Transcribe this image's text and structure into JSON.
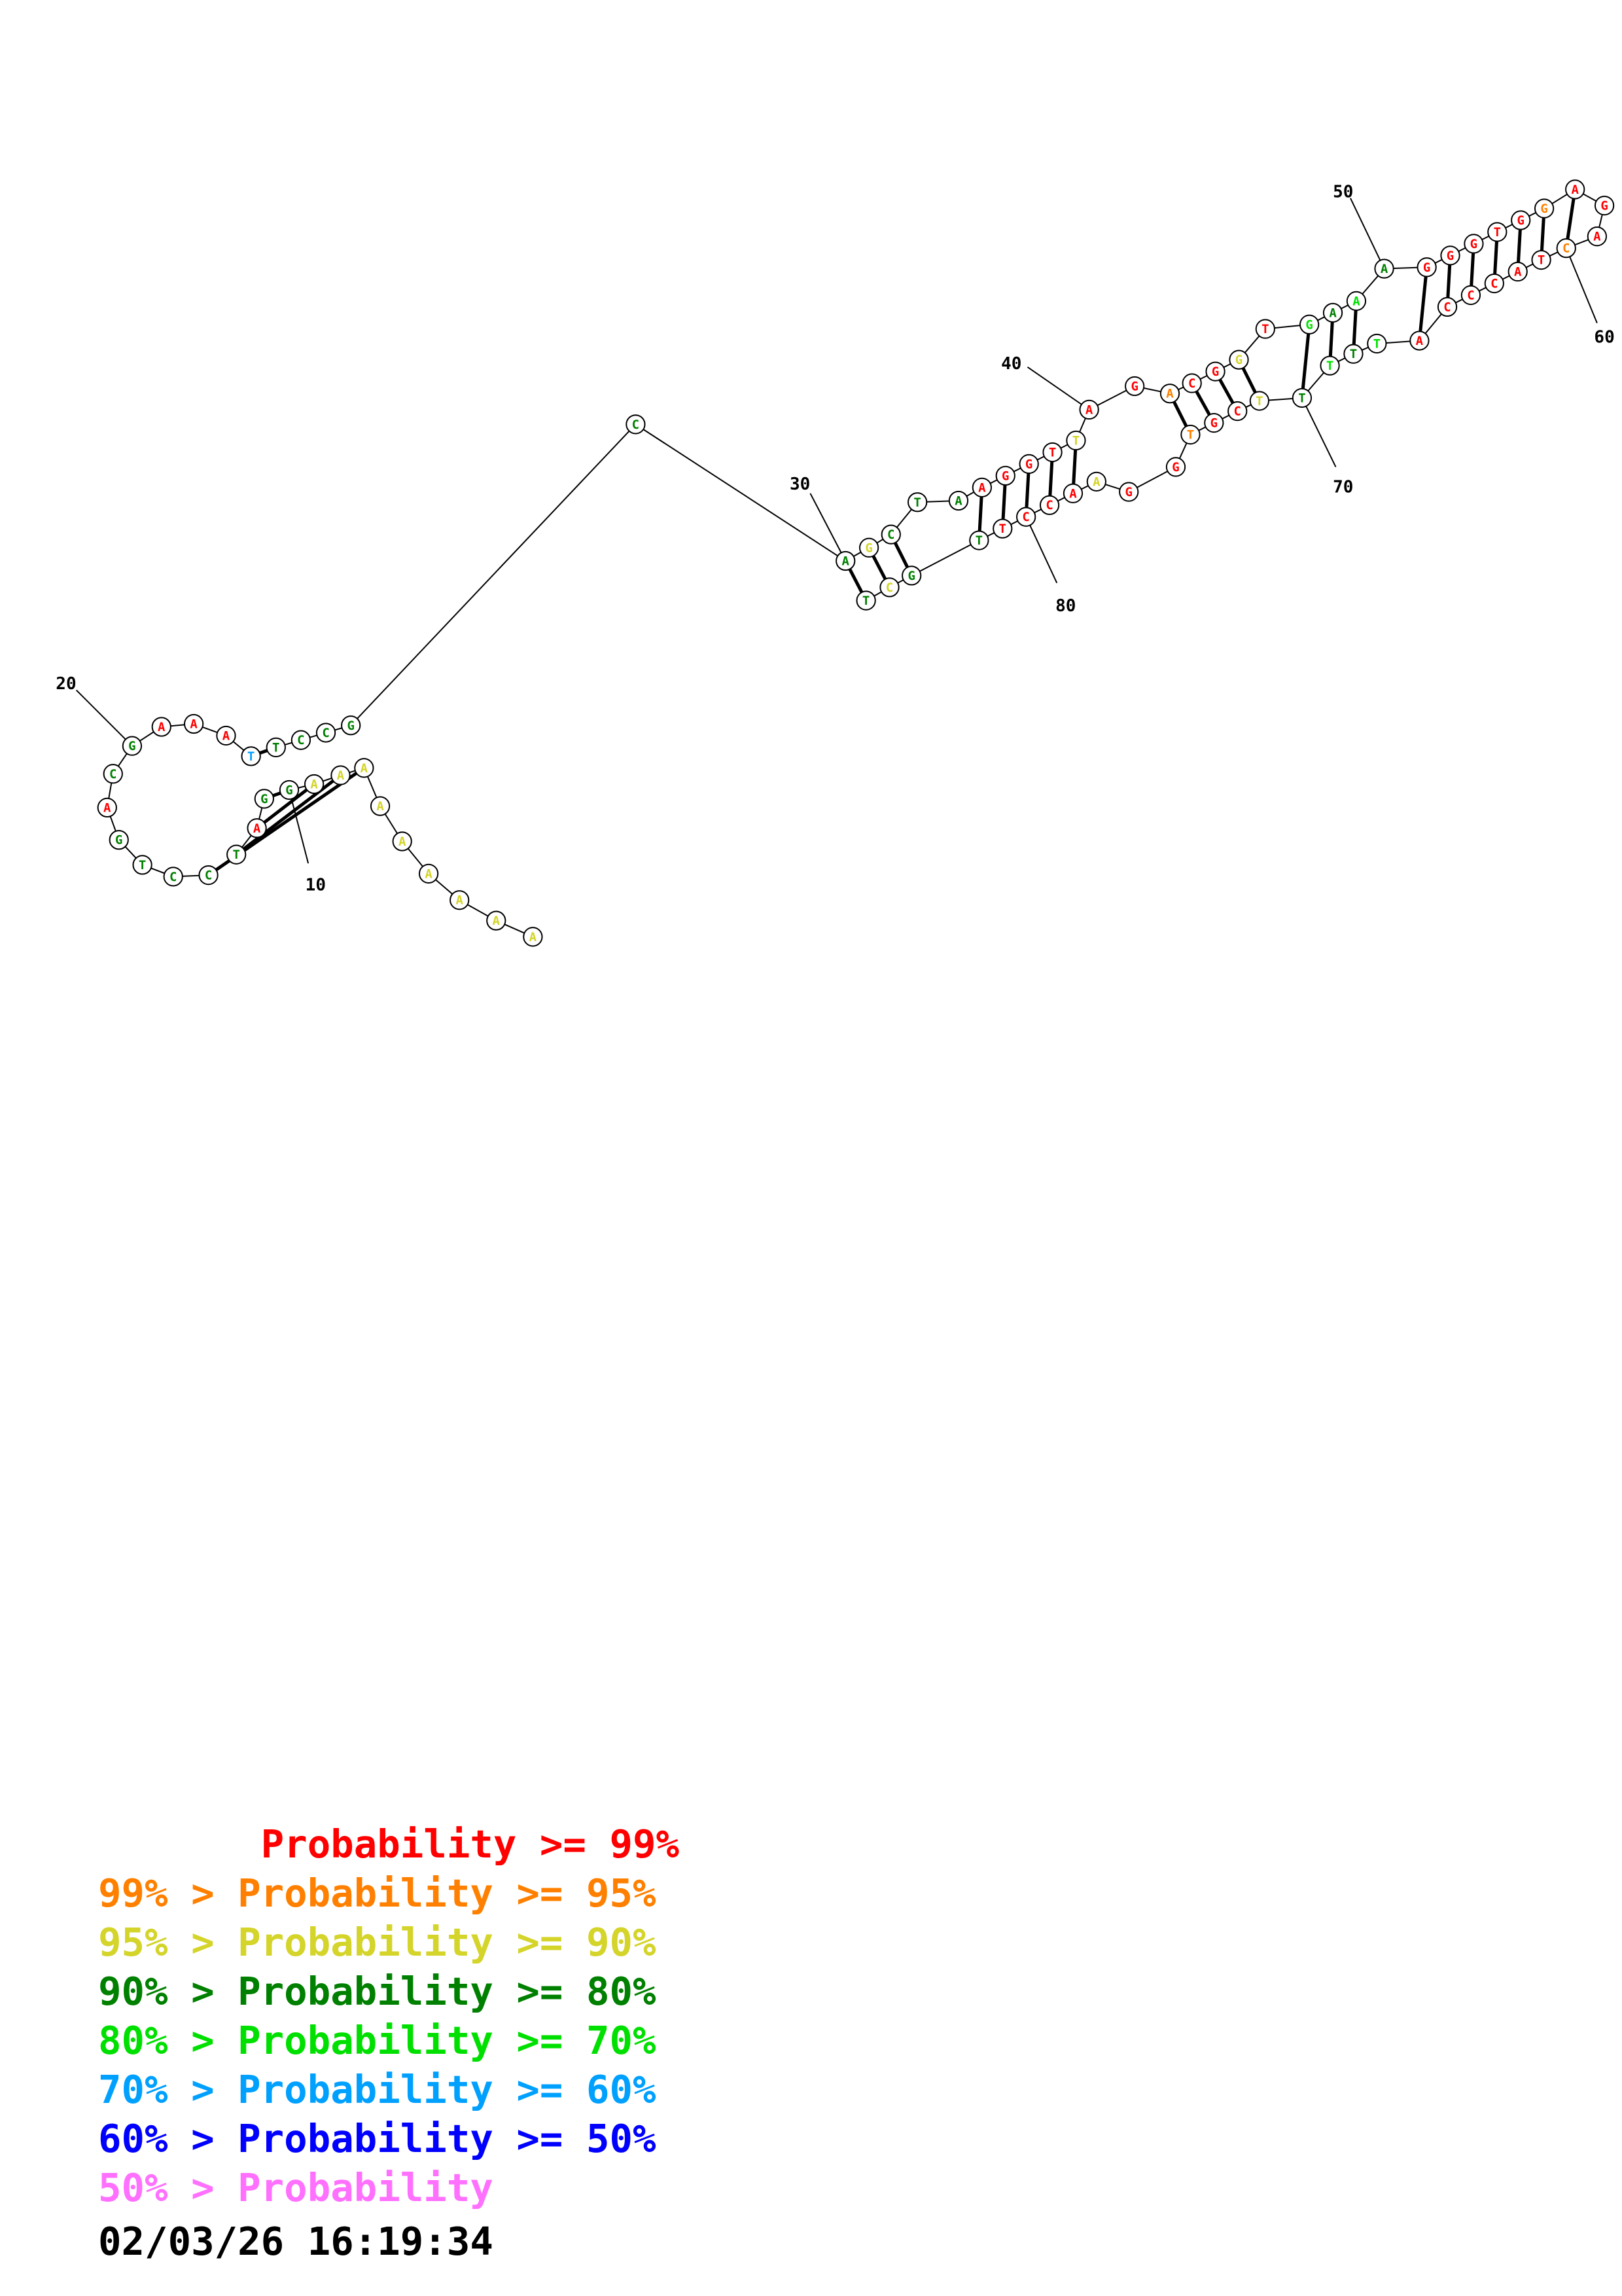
{
  "colors": {
    "p99": "#ff0000",
    "p95": "#ff8000",
    "p90": "#d4d42a",
    "p80": "#008000",
    "p70": "#00e000",
    "p60": "#00a0ff",
    "p50": "#0000ff",
    "plow": "#ff70ff"
  },
  "nucleotides": [
    {
      "base": "A",
      "c": "p90"
    },
    {
      "base": "A",
      "c": "p90"
    },
    {
      "base": "A",
      "c": "p90"
    },
    {
      "base": "A",
      "c": "p90"
    },
    {
      "base": "A",
      "c": "p90"
    },
    {
      "base": "A",
      "c": "p90"
    },
    {
      "base": "A",
      "c": "p90"
    },
    {
      "base": "A",
      "c": "p90"
    },
    {
      "base": "A",
      "c": "p90"
    },
    {
      "base": "G",
      "c": "p80"
    },
    {
      "base": "G",
      "c": "p80"
    },
    {
      "base": "A",
      "c": "p99"
    },
    {
      "base": "T",
      "c": "p80"
    },
    {
      "base": "C",
      "c": "p80"
    },
    {
      "base": "C",
      "c": "p80"
    },
    {
      "base": "T",
      "c": "p80"
    },
    {
      "base": "G",
      "c": "p80"
    },
    {
      "base": "A",
      "c": "p99"
    },
    {
      "base": "C",
      "c": "p80"
    },
    {
      "base": "G",
      "c": "p80"
    },
    {
      "base": "A",
      "c": "p99"
    },
    {
      "base": "A",
      "c": "p99"
    },
    {
      "base": "A",
      "c": "p99"
    },
    {
      "base": "T",
      "c": "p60"
    },
    {
      "base": "T",
      "c": "p80"
    },
    {
      "base": "C",
      "c": "p80"
    },
    {
      "base": "C",
      "c": "p80"
    },
    {
      "base": "G",
      "c": "p80"
    },
    {
      "base": "C",
      "c": "p80"
    },
    {
      "base": "A",
      "c": "p80"
    },
    {
      "base": "G",
      "c": "p90"
    },
    {
      "base": "C",
      "c": "p80"
    },
    {
      "base": "T",
      "c": "p80"
    },
    {
      "base": "A",
      "c": "p80"
    },
    {
      "base": "A",
      "c": "p99"
    },
    {
      "base": "G",
      "c": "p99"
    },
    {
      "base": "G",
      "c": "p99"
    },
    {
      "base": "T",
      "c": "p99"
    },
    {
      "base": "T",
      "c": "p90"
    },
    {
      "base": "A",
      "c": "p99"
    },
    {
      "base": "G",
      "c": "p99"
    },
    {
      "base": "A",
      "c": "p95"
    },
    {
      "base": "C",
      "c": "p99"
    },
    {
      "base": "G",
      "c": "p99"
    },
    {
      "base": "G",
      "c": "p90"
    },
    {
      "base": "T",
      "c": "p99"
    },
    {
      "base": "G",
      "c": "p70"
    },
    {
      "base": "A",
      "c": "p80"
    },
    {
      "base": "A",
      "c": "p70"
    },
    {
      "base": "A",
      "c": "p80"
    },
    {
      "base": "G",
      "c": "p99"
    },
    {
      "base": "G",
      "c": "p99"
    },
    {
      "base": "G",
      "c": "p99"
    },
    {
      "base": "T",
      "c": "p99"
    },
    {
      "base": "G",
      "c": "p99"
    },
    {
      "base": "G",
      "c": "p95"
    },
    {
      "base": "A",
      "c": "p99"
    },
    {
      "base": "G",
      "c": "p99"
    },
    {
      "base": "A",
      "c": "p99"
    },
    {
      "base": "C",
      "c": "p95"
    },
    {
      "base": "T",
      "c": "p99"
    },
    {
      "base": "A",
      "c": "p99"
    },
    {
      "base": "C",
      "c": "p99"
    },
    {
      "base": "C",
      "c": "p99"
    },
    {
      "base": "C",
      "c": "p99"
    },
    {
      "base": "A",
      "c": "p99"
    },
    {
      "base": "T",
      "c": "p70"
    },
    {
      "base": "T",
      "c": "p80"
    },
    {
      "base": "T",
      "c": "p70"
    },
    {
      "base": "T",
      "c": "p80"
    },
    {
      "base": "T",
      "c": "p90"
    },
    {
      "base": "C",
      "c": "p99"
    },
    {
      "base": "G",
      "c": "p99"
    },
    {
      "base": "T",
      "c": "p95"
    },
    {
      "base": "G",
      "c": "p99"
    },
    {
      "base": "G",
      "c": "p99"
    },
    {
      "base": "A",
      "c": "p90"
    },
    {
      "base": "A",
      "c": "p99"
    },
    {
      "base": "C",
      "c": "p99"
    },
    {
      "base": "C",
      "c": "p99"
    },
    {
      "base": "T",
      "c": "p99"
    },
    {
      "base": "T",
      "c": "p80"
    },
    {
      "base": "G",
      "c": "p80"
    },
    {
      "base": "C",
      "c": "p90"
    },
    {
      "base": "T",
      "c": "p80"
    }
  ],
  "position_labels": [
    "10",
    "20",
    "30",
    "40",
    "50",
    "60",
    "70",
    "80"
  ],
  "legend": [
    {
      "text": "       Probability >= 99%",
      "c": "p99"
    },
    {
      "text": "99% > Probability >= 95%",
      "c": "p95"
    },
    {
      "text": "95% > Probability >= 90%",
      "c": "p90"
    },
    {
      "text": "90% > Probability >= 80%",
      "c": "p80"
    },
    {
      "text": "80% > Probability >= 70%",
      "c": "p70"
    },
    {
      "text": "70% > Probability >= 60%",
      "c": "p60"
    },
    {
      "text": "60% > Probability >= 50%",
      "c": "p50"
    },
    {
      "text": "50% > Probability",
      "c": "plow"
    }
  ],
  "timestamp": "02/03/26 16:19:34"
}
